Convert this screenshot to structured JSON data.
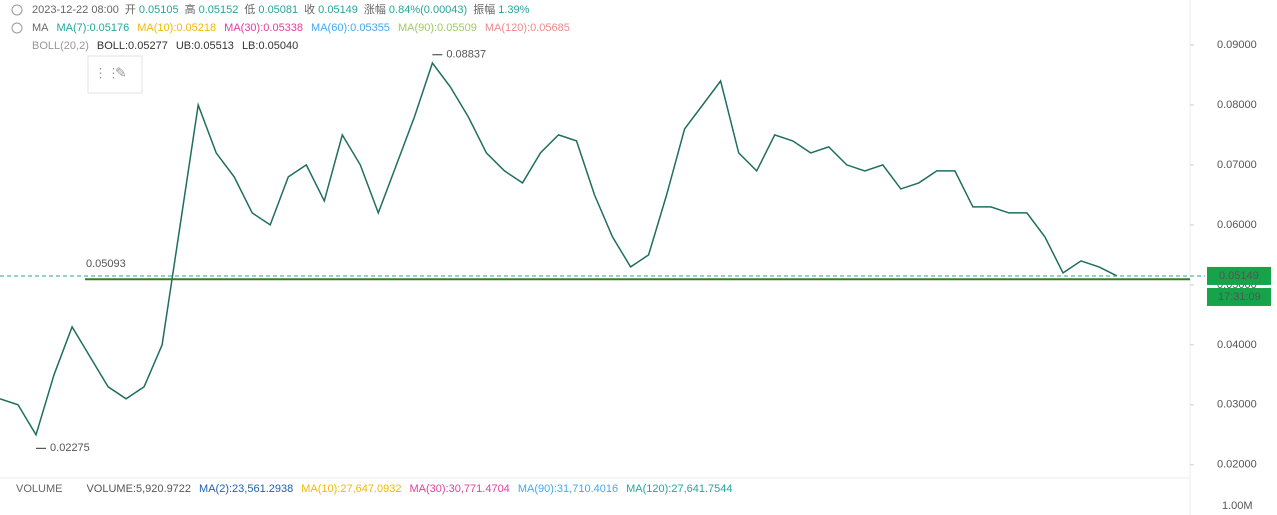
{
  "header": {
    "datetime": "2023-12-22 08:00",
    "open_label": "开",
    "open": 0.05105,
    "high_label": "高",
    "high": 0.05152,
    "low_label": "低",
    "low": 0.05081,
    "close_label": "收",
    "close": 0.05149,
    "change_label": "涨幅",
    "change": "0.84%(0.00043)",
    "amp_label": "振幅",
    "amp": "1.39%"
  },
  "ma_legend": {
    "title": "MA",
    "items": [
      {
        "text": "MA(7):0.05176",
        "color": "#26a69a"
      },
      {
        "text": "MA(10):0.05218",
        "color": "#f0b90b"
      },
      {
        "text": "MA(30):0.05338",
        "color": "#e040a0"
      },
      {
        "text": "MA(60):0.05355",
        "color": "#3fa9f5"
      },
      {
        "text": "MA(90):0.05509",
        "color": "#9ccc65"
      },
      {
        "text": "MA(120):0.05685",
        "color": "#ef8a8a"
      }
    ]
  },
  "boll_legend": {
    "title": "BOLL(20,2)",
    "items": [
      "BOLL:0.05277",
      "UB:0.05513",
      "LB:0.05040"
    ]
  },
  "volume_legend": {
    "title": "VOLUME",
    "items": [
      {
        "text": "VOLUME:5,920.9722",
        "color": "#555"
      },
      {
        "text": "MA(2):23,561.2938",
        "color": "#1e5fb4"
      },
      {
        "text": "MA(10):27,647.0932",
        "color": "#f0b90b"
      },
      {
        "text": "MA(30):30,771.4704",
        "color": "#e040a0"
      },
      {
        "text": "MA(90):31,710.4016",
        "color": "#3fa9f5"
      },
      {
        "text": "MA(120):27,641.7544",
        "color": "#26a69a"
      }
    ],
    "tick": "1.00M"
  },
  "chart_data": {
    "type": "line",
    "values": [
      0.031,
      0.03,
      0.025,
      0.035,
      0.043,
      0.038,
      0.033,
      0.031,
      0.033,
      0.04,
      0.06,
      0.08,
      0.072,
      0.068,
      0.062,
      0.06,
      0.068,
      0.07,
      0.064,
      0.075,
      0.07,
      0.062,
      0.07,
      0.078,
      0.087,
      0.083,
      0.078,
      0.072,
      0.069,
      0.067,
      0.072,
      0.075,
      0.074,
      0.065,
      0.058,
      0.053,
      0.055,
      0.065,
      0.076,
      0.08,
      0.084,
      0.072,
      0.069,
      0.075,
      0.074,
      0.072,
      0.073,
      0.07,
      0.069,
      0.07,
      0.066,
      0.067,
      0.069,
      0.069,
      0.063,
      0.063,
      0.062,
      0.062,
      0.058,
      0.052,
      0.054,
      0.053,
      0.0515
    ],
    "color": "#1f6e5f",
    "ylim": [
      0.0178,
      0.0975
    ],
    "yticks": [
      {
        "value": 0.02,
        "label": "0.02000"
      },
      {
        "value": 0.03,
        "label": "0.03000"
      },
      {
        "value": 0.04,
        "label": "0.04000"
      },
      {
        "value": 0.05,
        "label": "0.05000"
      },
      {
        "value": 0.06,
        "label": "0.06000"
      },
      {
        "value": 0.07,
        "label": "0.07000"
      },
      {
        "value": 0.08,
        "label": "0.08000"
      },
      {
        "value": 0.09,
        "label": "0.09000"
      }
    ],
    "max_annotation": 0.08837,
    "min_annotation": 0.02275,
    "support_line": {
      "value": 0.05093,
      "color": "#3a7d1a"
    },
    "last_price": {
      "value": 0.05149,
      "time": "17:31:09",
      "color": "#16a34a"
    }
  }
}
